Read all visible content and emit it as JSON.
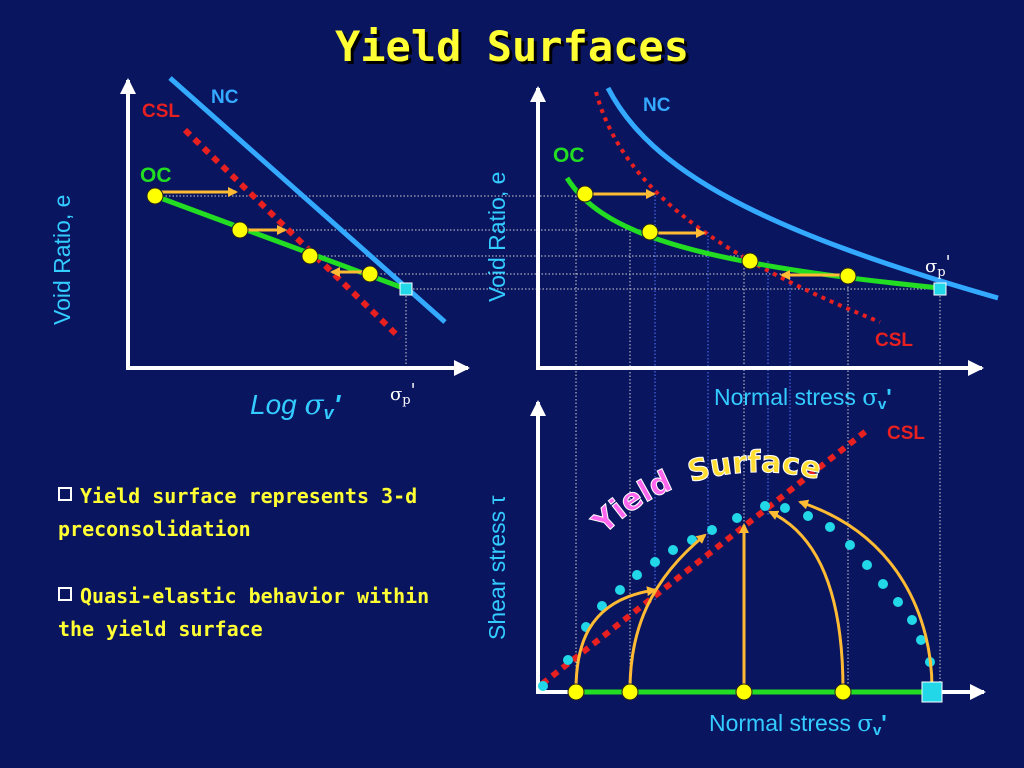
{
  "title": "Yield Surfaces",
  "colors": {
    "background": "#0a1560",
    "title": "#ffff33",
    "nc_line": "#33aaff",
    "csl_line": "#e82020",
    "oc_line": "#22dd22",
    "yield_points": "#22d8e8",
    "arrows": "#ffbb33",
    "state_points": "#ffff00",
    "guide_lines": "#cfcfcf",
    "text_cyan": "#33ccff"
  },
  "panel_left": {
    "ylabel": "Void Ratio, e",
    "xlabel_prefix": "Log ",
    "xlabel_sigma": "σ",
    "xlabel_sub": "v",
    "xlabel_prime": "'",
    "label_nc": "NC",
    "label_csl": "CSL",
    "label_oc": "OC",
    "sigma_p_symbol": "σ",
    "sigma_p_sub": "p",
    "sigma_p_prime": "'"
  },
  "panel_right": {
    "ylabel": "Void Ratio, e",
    "xlabel_prefix": "Normal stress ",
    "xlabel_sigma": "σ",
    "xlabel_sub": "v",
    "xlabel_prime": "'",
    "label_nc": "NC",
    "label_csl": "CSL",
    "label_oc": "OC",
    "sigma_p_symbol": "σ",
    "sigma_p_sub": "p",
    "sigma_p_prime": "'"
  },
  "panel_bottom": {
    "ylabel": "Shear stress τ",
    "xlabel_prefix": "Normal stress ",
    "xlabel_sigma": "σ",
    "xlabel_sub": "v",
    "xlabel_prime": "'",
    "label_csl": "CSL",
    "yield_word1": "Yield",
    "yield_word2": "Surface"
  },
  "bullets": [
    "Yield surface represents 3-d preconsolidation",
    "Quasi-elastic behavior within the yield surface"
  ]
}
